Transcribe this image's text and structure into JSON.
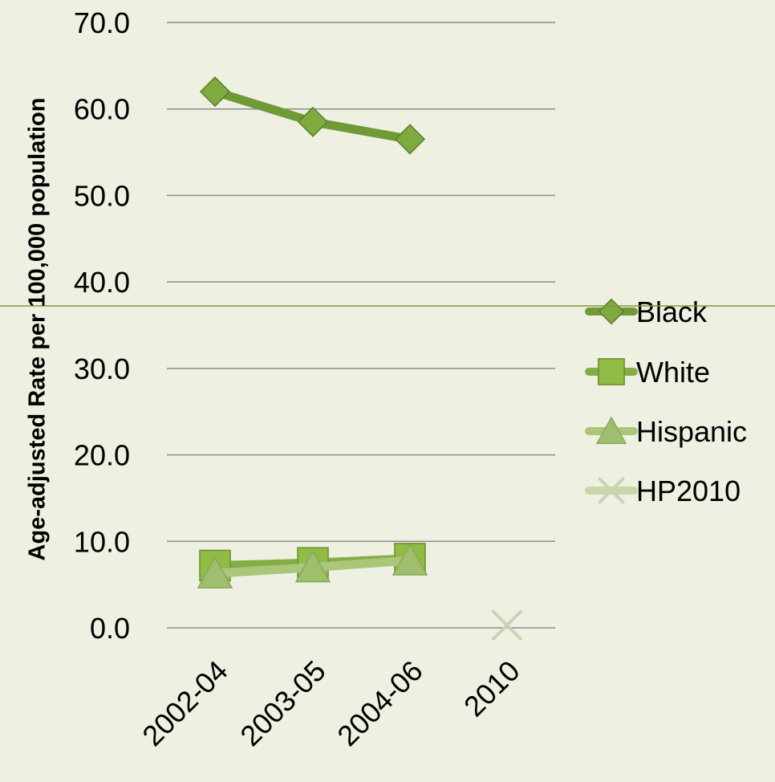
{
  "colors": {
    "background": "#eef0e2",
    "gridline": "#8c8c8c",
    "divider": "#7a9a3a",
    "black_series": "#6f9a35",
    "black_marker": "#7faa40",
    "white_series": "#86ad45",
    "white_marker": "#8fbc45",
    "hispanic_series": "#a9c67a",
    "hispanic_marker": "#9fbf6e",
    "hp2010_series": "#c8d6ac",
    "hp2010_marker": "#c9d3b4"
  },
  "chart_data": {
    "type": "line",
    "title": "",
    "xlabel": "",
    "ylabel": "Age-adjusted Rate per 100,000 population",
    "categories": [
      "2002-04",
      "2003-05",
      "2004-06",
      "2010"
    ],
    "ylim": [
      0,
      70
    ],
    "yticks": [
      0,
      10,
      20,
      30,
      40,
      50,
      60,
      70
    ],
    "ytick_labels": [
      "0.0",
      "10.0",
      "20.0",
      "30.0",
      "40.0",
      "50.0",
      "60.0",
      "70.0"
    ],
    "grid": true,
    "legend_position": "right",
    "series": [
      {
        "name": "Black",
        "values": [
          62.0,
          58.5,
          56.5,
          null
        ],
        "marker": "diamond",
        "color_key": "black_series",
        "marker_color_key": "black_marker"
      },
      {
        "name": "White",
        "values": [
          7.2,
          7.5,
          8.0,
          null
        ],
        "marker": "square",
        "color_key": "white_series",
        "marker_color_key": "white_marker"
      },
      {
        "name": "Hispanic",
        "values": [
          6.3,
          7.0,
          7.8,
          null
        ],
        "marker": "triangle",
        "color_key": "hispanic_series",
        "marker_color_key": "hispanic_marker"
      },
      {
        "name": "HP2010",
        "values": [
          null,
          null,
          null,
          0.3
        ],
        "marker": "x",
        "color_key": "hp2010_series",
        "marker_color_key": "hp2010_marker"
      }
    ]
  }
}
